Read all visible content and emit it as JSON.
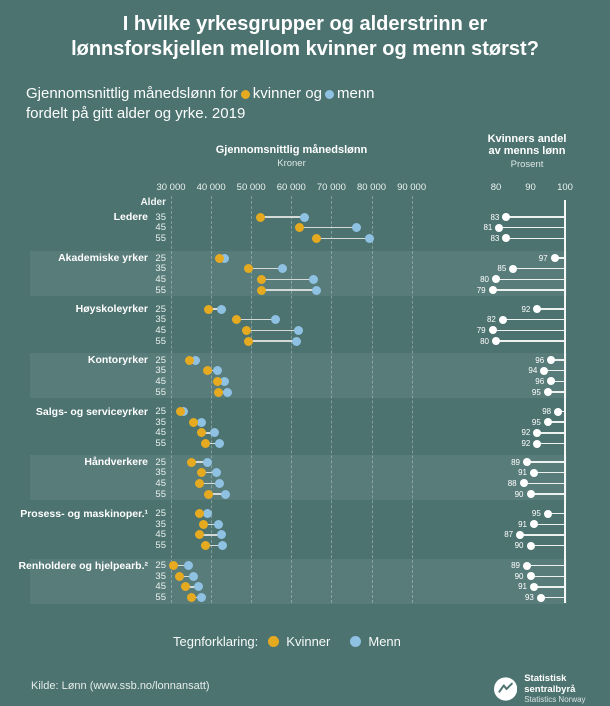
{
  "title": {
    "line1": "I hvilke yrkesgrupper og alderstrinn er",
    "line2": "lønnsforskjellen mellom kvinner og menn størst?"
  },
  "subtitle": {
    "part1": "Gjennomsnittlig månedslønn for",
    "part2": "kvinner og",
    "part3": "menn",
    "line2": "fordelt på gitt alder og yrke. 2019"
  },
  "colors": {
    "background": "#4C7370",
    "band": "#577E7A",
    "women": "#E6AA20",
    "men": "#8FC1E3",
    "connector": "#D3DAD8",
    "axis_white": "#F4F8F7"
  },
  "chart_data": {
    "type": "dumbbell+lollipop",
    "age_header": "Alder",
    "left_panel": {
      "title": "Gjennomsnittlig månedslønn",
      "unit": "Kroner",
      "ticks": [
        "30 000",
        "40 000",
        "50 000",
        "60 000",
        "70 000",
        "80 000",
        "90 000"
      ],
      "tick_values": [
        30000,
        40000,
        50000,
        60000,
        70000,
        80000,
        90000
      ],
      "range": [
        30000,
        90000
      ],
      "gridlines": "dashed"
    },
    "right_panel": {
      "title_line1": "Kvinners andel",
      "title_line2": "av menns lønn",
      "unit": "Prosent",
      "ticks": [
        "80",
        "90",
        "100"
      ],
      "tick_values": [
        80,
        90,
        100
      ],
      "range": [
        80,
        100
      ],
      "axis_line_at": 100
    },
    "groups": [
      {
        "label": "Ledere",
        "band": false,
        "rows": [
          {
            "age": "35",
            "kvinner": 52400,
            "menn": 63300,
            "andel": 83
          },
          {
            "age": "45",
            "kvinner": 62000,
            "menn": 76300,
            "andel": 81
          },
          {
            "age": "55",
            "kvinner": 66300,
            "menn": 79600,
            "andel": 83
          }
        ]
      },
      {
        "label": "Akademiske yrker",
        "band": true,
        "rows": [
          {
            "age": "25",
            "kvinner": 42100,
            "menn": 43300,
            "andel": 97
          },
          {
            "age": "35",
            "kvinner": 49300,
            "menn": 57900,
            "andel": 85
          },
          {
            "age": "45",
            "kvinner": 52600,
            "menn": 65400,
            "andel": 80
          },
          {
            "age": "55",
            "kvinner": 52500,
            "menn": 66300,
            "andel": 79
          }
        ]
      },
      {
        "label": "Høyskoleyrker",
        "band": false,
        "rows": [
          {
            "age": "25",
            "kvinner": 39300,
            "menn": 42600,
            "andel": 92
          },
          {
            "age": "35",
            "kvinner": 46200,
            "menn": 56100,
            "andel": 82
          },
          {
            "age": "45",
            "kvinner": 48900,
            "menn": 61700,
            "andel": 79
          },
          {
            "age": "55",
            "kvinner": 49200,
            "menn": 61400,
            "andel": 80
          }
        ]
      },
      {
        "label": "Kontoryrker",
        "band": true,
        "rows": [
          {
            "age": "25",
            "kvinner": 34600,
            "menn": 36000,
            "andel": 96
          },
          {
            "age": "35",
            "kvinner": 39100,
            "menn": 41600,
            "andel": 94
          },
          {
            "age": "45",
            "kvinner": 41500,
            "menn": 43300,
            "andel": 96
          },
          {
            "age": "55",
            "kvinner": 41900,
            "menn": 44100,
            "andel": 95
          }
        ]
      },
      {
        "label": "Salgs- og serviceyrker",
        "band": false,
        "rows": [
          {
            "age": "25",
            "kvinner": 32300,
            "menn": 33000,
            "andel": 98
          },
          {
            "age": "35",
            "kvinner": 35700,
            "menn": 37600,
            "andel": 95
          },
          {
            "age": "45",
            "kvinner": 37600,
            "menn": 40800,
            "andel": 92
          },
          {
            "age": "55",
            "kvinner": 38700,
            "menn": 42000,
            "andel": 92
          }
        ]
      },
      {
        "label": "Håndverkere",
        "band": true,
        "rows": [
          {
            "age": "25",
            "kvinner": 35000,
            "menn": 39200,
            "andel": 89
          },
          {
            "age": "35",
            "kvinner": 37700,
            "menn": 41400,
            "andel": 91
          },
          {
            "age": "45",
            "kvinner": 37100,
            "menn": 42100,
            "andel": 88
          },
          {
            "age": "55",
            "kvinner": 39300,
            "menn": 43600,
            "andel": 90
          }
        ]
      },
      {
        "label": "Prosess- og maskinoper.¹",
        "band": false,
        "rows": [
          {
            "age": "25",
            "kvinner": 37100,
            "menn": 39100,
            "andel": 95
          },
          {
            "age": "35",
            "kvinner": 38000,
            "menn": 41800,
            "andel": 91
          },
          {
            "age": "45",
            "kvinner": 37000,
            "menn": 42500,
            "andel": 87
          },
          {
            "age": "55",
            "kvinner": 38500,
            "menn": 42800,
            "andel": 90
          }
        ]
      },
      {
        "label": "Renholdere og hjelpearb.²",
        "band": true,
        "rows": [
          {
            "age": "25",
            "kvinner": 30700,
            "menn": 34400,
            "andel": 89
          },
          {
            "age": "35",
            "kvinner": 32000,
            "menn": 35500,
            "andel": 90
          },
          {
            "age": "45",
            "kvinner": 33500,
            "menn": 36800,
            "andel": 91
          },
          {
            "age": "55",
            "kvinner": 35000,
            "menn": 37600,
            "andel": 93
          }
        ]
      }
    ]
  },
  "legend": {
    "label": "Tegnforklaring:",
    "women": "Kvinner",
    "men": "Menn"
  },
  "footer": {
    "source": "Kilde: Lønn (www.ssb.no/lonnansatt)",
    "logo_line1": "Statistisk sentralbyrå",
    "logo_line2": "Statistics Norway"
  }
}
